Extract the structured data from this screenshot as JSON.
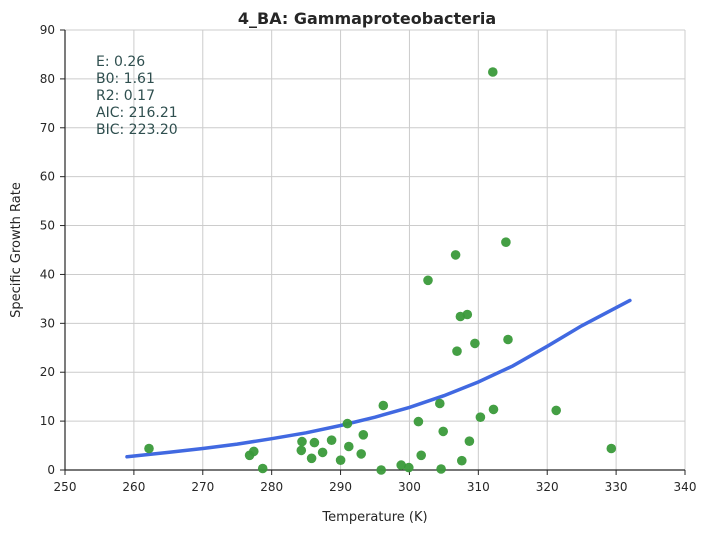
{
  "chart_data": {
    "type": "scatter",
    "title": "4_BA: Gammaproteobacteria",
    "xlabel": "Temperature (K)",
    "ylabel": "Specific Growth Rate",
    "xlim": [
      250,
      340
    ],
    "ylim": [
      0,
      90
    ],
    "xticks": [
      250,
      260,
      270,
      280,
      290,
      300,
      310,
      320,
      330,
      340
    ],
    "yticks": [
      0,
      10,
      20,
      30,
      40,
      50,
      60,
      70,
      80,
      90
    ],
    "grid": true,
    "stats": [
      "E:  0.26",
      "B0:  1.61",
      "R2:  0.17",
      "AIC: 216.21",
      "BIC: 223.20"
    ],
    "colors": {
      "points": "#3a9a3a",
      "curve": "#4169e1"
    },
    "points": [
      [
        262.2,
        4.4
      ],
      [
        276.8,
        3.0
      ],
      [
        277.4,
        3.8
      ],
      [
        278.7,
        0.3
      ],
      [
        284.3,
        4.0
      ],
      [
        284.4,
        5.8
      ],
      [
        285.8,
        2.4
      ],
      [
        286.2,
        5.6
      ],
      [
        287.4,
        3.6
      ],
      [
        288.7,
        6.1
      ],
      [
        290.0,
        2.0
      ],
      [
        291.0,
        9.5
      ],
      [
        291.2,
        4.8
      ],
      [
        293.0,
        3.3
      ],
      [
        293.3,
        7.2
      ],
      [
        295.9,
        0.0
      ],
      [
        296.2,
        13.2
      ],
      [
        298.8,
        1.0
      ],
      [
        299.9,
        0.5
      ],
      [
        301.3,
        9.9
      ],
      [
        301.7,
        3.0
      ],
      [
        302.7,
        38.8
      ],
      [
        304.4,
        13.6
      ],
      [
        304.6,
        0.2
      ],
      [
        304.9,
        7.9
      ],
      [
        306.7,
        44.0
      ],
      [
        306.9,
        24.3
      ],
      [
        307.4,
        31.4
      ],
      [
        307.6,
        1.9
      ],
      [
        308.4,
        31.8
      ],
      [
        308.7,
        5.9
      ],
      [
        309.5,
        25.9
      ],
      [
        310.3,
        10.8
      ],
      [
        312.1,
        81.4
      ],
      [
        312.2,
        12.4
      ],
      [
        314.0,
        46.6
      ],
      [
        314.3,
        26.7
      ],
      [
        321.3,
        12.2
      ],
      [
        329.3,
        4.4
      ]
    ],
    "curve": {
      "x": [
        259,
        265,
        270,
        275,
        280,
        285,
        290,
        295,
        300,
        305,
        310,
        315,
        320,
        325,
        332
      ],
      "y": [
        2.7,
        3.6,
        4.4,
        5.3,
        6.4,
        7.6,
        9.1,
        10.8,
        12.8,
        15.2,
        18.0,
        21.3,
        25.3,
        29.5,
        34.7
      ]
    }
  }
}
